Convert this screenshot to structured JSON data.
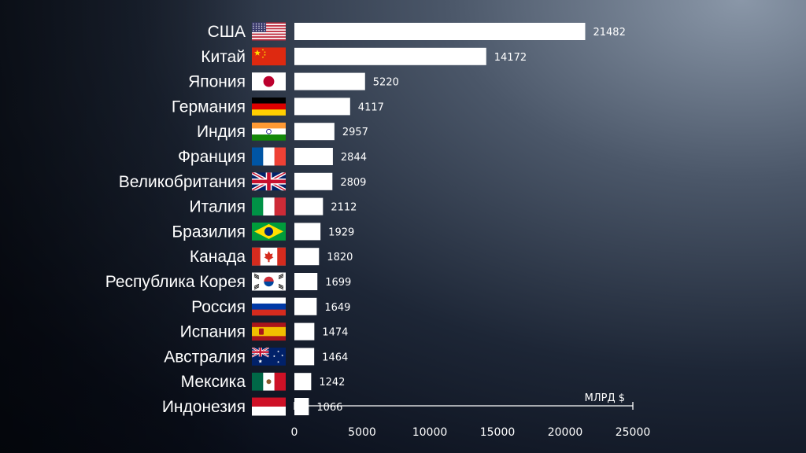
{
  "chart_data": {
    "type": "bar",
    "orientation": "horizontal",
    "categories": [
      "США",
      "Китай",
      "Япония",
      "Германия",
      "Индия",
      "Франция",
      "Великобритания",
      "Италия",
      "Бразилия",
      "Канада",
      "Республика Корея",
      "Россия",
      "Испания",
      "Австралия",
      "Мексика",
      "Индонезия"
    ],
    "flags": [
      "us-flag-icon",
      "china-flag-icon",
      "japan-flag-icon",
      "germany-flag-icon",
      "india-flag-icon",
      "france-flag-icon",
      "uk-flag-icon",
      "italy-flag-icon",
      "brazil-flag-icon",
      "canada-flag-icon",
      "korea-flag-icon",
      "russia-flag-icon",
      "spain-flag-icon",
      "australia-flag-icon",
      "mexico-flag-icon",
      "indonesia-flag-icon"
    ],
    "values": [
      21482,
      14172,
      5220,
      4117,
      2957,
      2844,
      2809,
      2112,
      1929,
      1820,
      1699,
      1649,
      1474,
      1464,
      1242,
      1066
    ],
    "title": "",
    "xlabel": "МЛРД $",
    "ylabel": "",
    "xlim": [
      0,
      25000
    ],
    "xticks": [
      0,
      5000,
      10000,
      15000,
      20000,
      25000
    ],
    "grid": false,
    "legend": "none",
    "bar_color": "#ffffff"
  }
}
